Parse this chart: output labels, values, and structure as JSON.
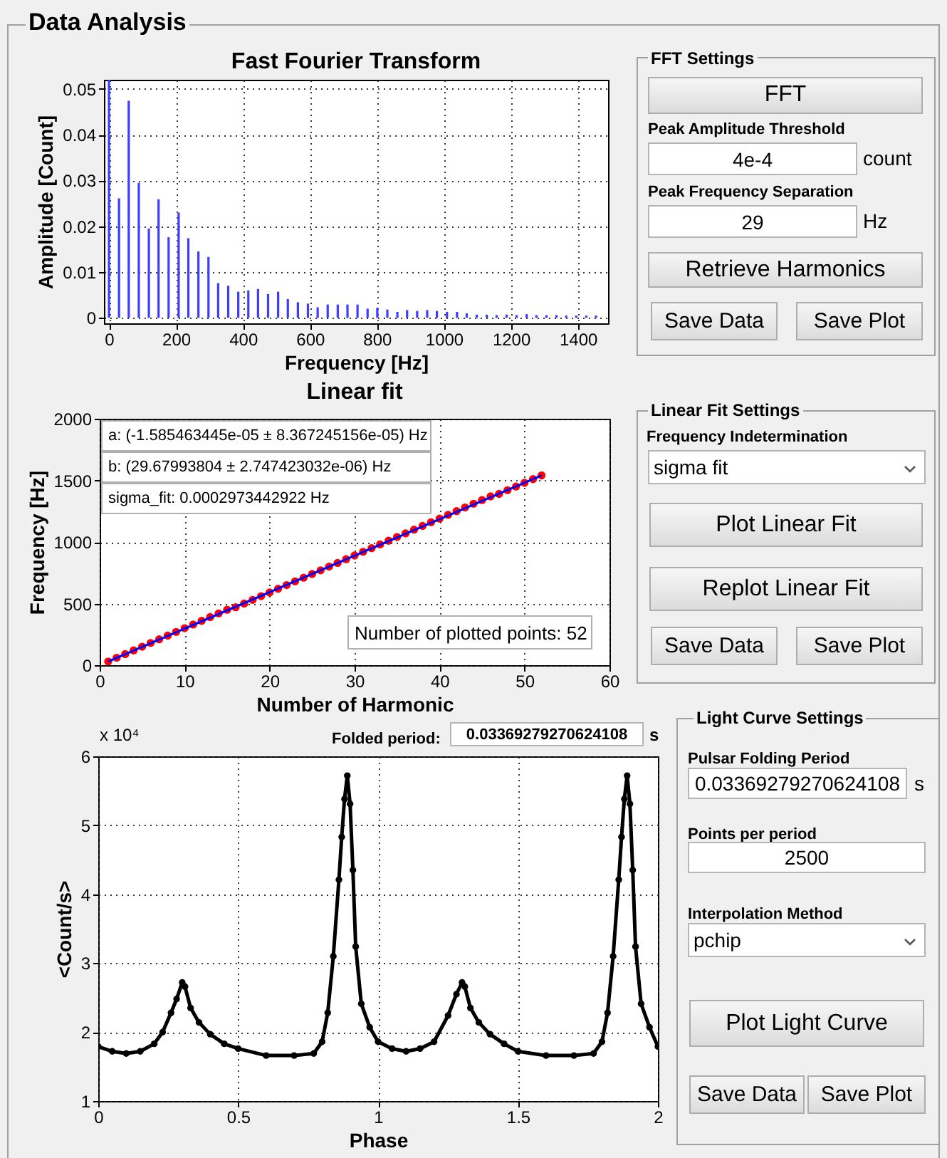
{
  "chart_data": [
    {
      "type": "other",
      "title": "Data Analysis"
    },
    {
      "type": "bar",
      "title": "Fast Fourier Transform",
      "xlabel": "Frequency [Hz]",
      "ylabel": "Amplitude [Count]",
      "color": "#3d3dff",
      "grid": true,
      "x": [
        0,
        30,
        59,
        89,
        119,
        148,
        178,
        208,
        237,
        267,
        297,
        326,
        356,
        386,
        416,
        445,
        475,
        505,
        534,
        564,
        594,
        623,
        653,
        683,
        712,
        742,
        772,
        801,
        831,
        861,
        890,
        920,
        950,
        979,
        1009,
        1039,
        1068,
        1098,
        1128,
        1157,
        1187,
        1217,
        1247,
        1276,
        1306,
        1336,
        1365,
        1395,
        1425,
        1454
      ],
      "values": [
        0.052,
        0.0261,
        0.0474,
        0.0295,
        0.0195,
        0.0259,
        0.0176,
        0.023,
        0.0174,
        0.0145,
        0.0133,
        0.0076,
        0.007,
        0.0057,
        0.006,
        0.0063,
        0.0052,
        0.0057,
        0.0041,
        0.0034,
        0.0031,
        0.0023,
        0.0029,
        0.0029,
        0.0029,
        0.0029,
        0.002,
        0.0022,
        0.0018,
        0.0013,
        0.0017,
        0.0015,
        0.0017,
        0.0015,
        0.0013,
        0.0013,
        0.001,
        0.0007,
        0.0007,
        0.0006,
        0.0007,
        0.0006,
        0.0008,
        0.0006,
        0.0006,
        0.0006,
        0.0005,
        0.0005,
        0.0005,
        0.0005
      ],
      "xlim": [
        -15,
        1490
      ],
      "xticks": [
        0,
        200,
        400,
        600,
        800,
        1000,
        1200,
        1400
      ],
      "ylim": [
        -0.0012,
        0.052
      ],
      "yticks": [
        0,
        0.01,
        0.02,
        0.03,
        0.04,
        0.05
      ]
    },
    {
      "type": "other",
      "title": "FFT Settings",
      "annotations": [
        "FFT",
        "Peak Amplitude Threshold",
        "4e-4",
        "count",
        "Peak Frequency Separation",
        "29",
        "Hz",
        "Retrieve Harmonics",
        "Save Data",
        "Save Plot"
      ]
    },
    {
      "type": "scatter",
      "title": "Linear fit",
      "xlabel": "Number of Harmonic",
      "ylabel": "Frequency [Hz]",
      "grid": true,
      "marker": "circle",
      "xlim": [
        0,
        60
      ],
      "xticks": [
        0,
        10,
        20,
        30,
        40,
        50,
        60
      ],
      "ylim": [
        0,
        2000
      ],
      "yticks": [
        0,
        500,
        1000,
        1500,
        2000
      ],
      "series": [
        {
          "type": "scatter",
          "color": "#ff0000",
          "x": [
            1,
            2,
            3,
            4,
            5,
            6,
            7,
            8,
            9,
            10,
            11,
            12,
            13,
            14,
            15,
            16,
            17,
            18,
            19,
            20,
            21,
            22,
            23,
            24,
            25,
            26,
            27,
            28,
            29,
            30,
            31,
            32,
            33,
            34,
            35,
            36,
            37,
            38,
            39,
            40,
            41,
            42,
            43,
            44,
            45,
            46,
            47,
            48,
            49,
            50,
            51,
            52
          ],
          "values": [
            30,
            60,
            90,
            120,
            150,
            180,
            210,
            240,
            270,
            300,
            330,
            360,
            390,
            420,
            450,
            470,
            500,
            530,
            560,
            590,
            620,
            650,
            680,
            710,
            740,
            770,
            800,
            830,
            860,
            890,
            920,
            950,
            980,
            1010,
            1040,
            1070,
            1100,
            1130,
            1160,
            1190,
            1220,
            1250,
            1280,
            1310,
            1340,
            1370,
            1390,
            1420,
            1450,
            1480,
            1510,
            1540
          ]
        },
        {
          "type": "line",
          "color": "#0000ff",
          "marker": "none",
          "x": [
            1,
            52
          ],
          "values": [
            30,
            1540
          ]
        }
      ],
      "annotations": [
        "a: (-1.585463445e-05 ± 8.367245156e-05) Hz",
        "b: (29.67993804 ± 2.747423032e-06) Hz",
        "sigma_fit: 0.0002973442922 Hz",
        "Number of plotted points: 52"
      ]
    },
    {
      "type": "other",
      "title": "Linear Fit Settings",
      "annotations": [
        "Frequency Indetermination",
        "sigma fit",
        "Plot Linear Fit",
        "Replot Linear Fit",
        "Save Data",
        "Save Plot"
      ]
    },
    {
      "type": "line",
      "xlabel": "Phase",
      "ylabel": "<Count/s>",
      "grid": true,
      "marker": "circle",
      "color": "#000000",
      "x": [
        0,
        0.05,
        0.1,
        0.15,
        0.2,
        0.23,
        0.26,
        0.28,
        0.3,
        0.31,
        0.33,
        0.36,
        0.4,
        0.45,
        0.5,
        0.6,
        0.7,
        0.77,
        0.8,
        0.82,
        0.84,
        0.86,
        0.87,
        0.88,
        0.89,
        0.9,
        0.91,
        0.92,
        0.94,
        0.97,
        1,
        1.05,
        1.1,
        1.15,
        1.2,
        1.25,
        1.28,
        1.3,
        1.31,
        1.33,
        1.36,
        1.4,
        1.45,
        1.5,
        1.6,
        1.7,
        1.77,
        1.8,
        1.82,
        1.84,
        1.86,
        1.87,
        1.88,
        1.89,
        1.9,
        1.91,
        1.92,
        1.94,
        1.97,
        2
      ],
      "values": [
        1.79,
        1.72,
        1.69,
        1.72,
        1.83,
        2.0,
        2.28,
        2.48,
        2.72,
        2.66,
        2.35,
        2.14,
        1.97,
        1.83,
        1.76,
        1.66,
        1.66,
        1.69,
        1.86,
        2.28,
        3.1,
        4.21,
        4.83,
        5.38,
        5.72,
        5.31,
        4.35,
        3.24,
        2.41,
        2.07,
        1.86,
        1.76,
        1.72,
        1.76,
        1.86,
        2.24,
        2.55,
        2.72,
        2.66,
        2.35,
        2.14,
        1.97,
        1.83,
        1.72,
        1.66,
        1.66,
        1.69,
        1.86,
        2.28,
        3.1,
        4.21,
        4.83,
        5.38,
        5.72,
        5.31,
        4.35,
        3.24,
        2.41,
        2.07,
        1.79
      ],
      "xlim": [
        0,
        2
      ],
      "xticks": [
        0,
        0.5,
        1,
        1.5,
        2
      ],
      "ylim": [
        1,
        6
      ],
      "yticks": [
        1,
        2,
        3,
        4,
        5,
        6
      ],
      "annotations": [
        "x 10⁴",
        "Folded period:",
        "0.03369279270624108",
        "s"
      ]
    },
    {
      "type": "other",
      "title": "Light Curve Settings",
      "annotations": [
        "Pulsar Folding Period",
        "0.03369279270624108",
        "s",
        "Points per period",
        "2500",
        "Interpolation Method",
        "pchip",
        "Plot Light Curve",
        "Save Data",
        "Save Plot"
      ]
    }
  ]
}
